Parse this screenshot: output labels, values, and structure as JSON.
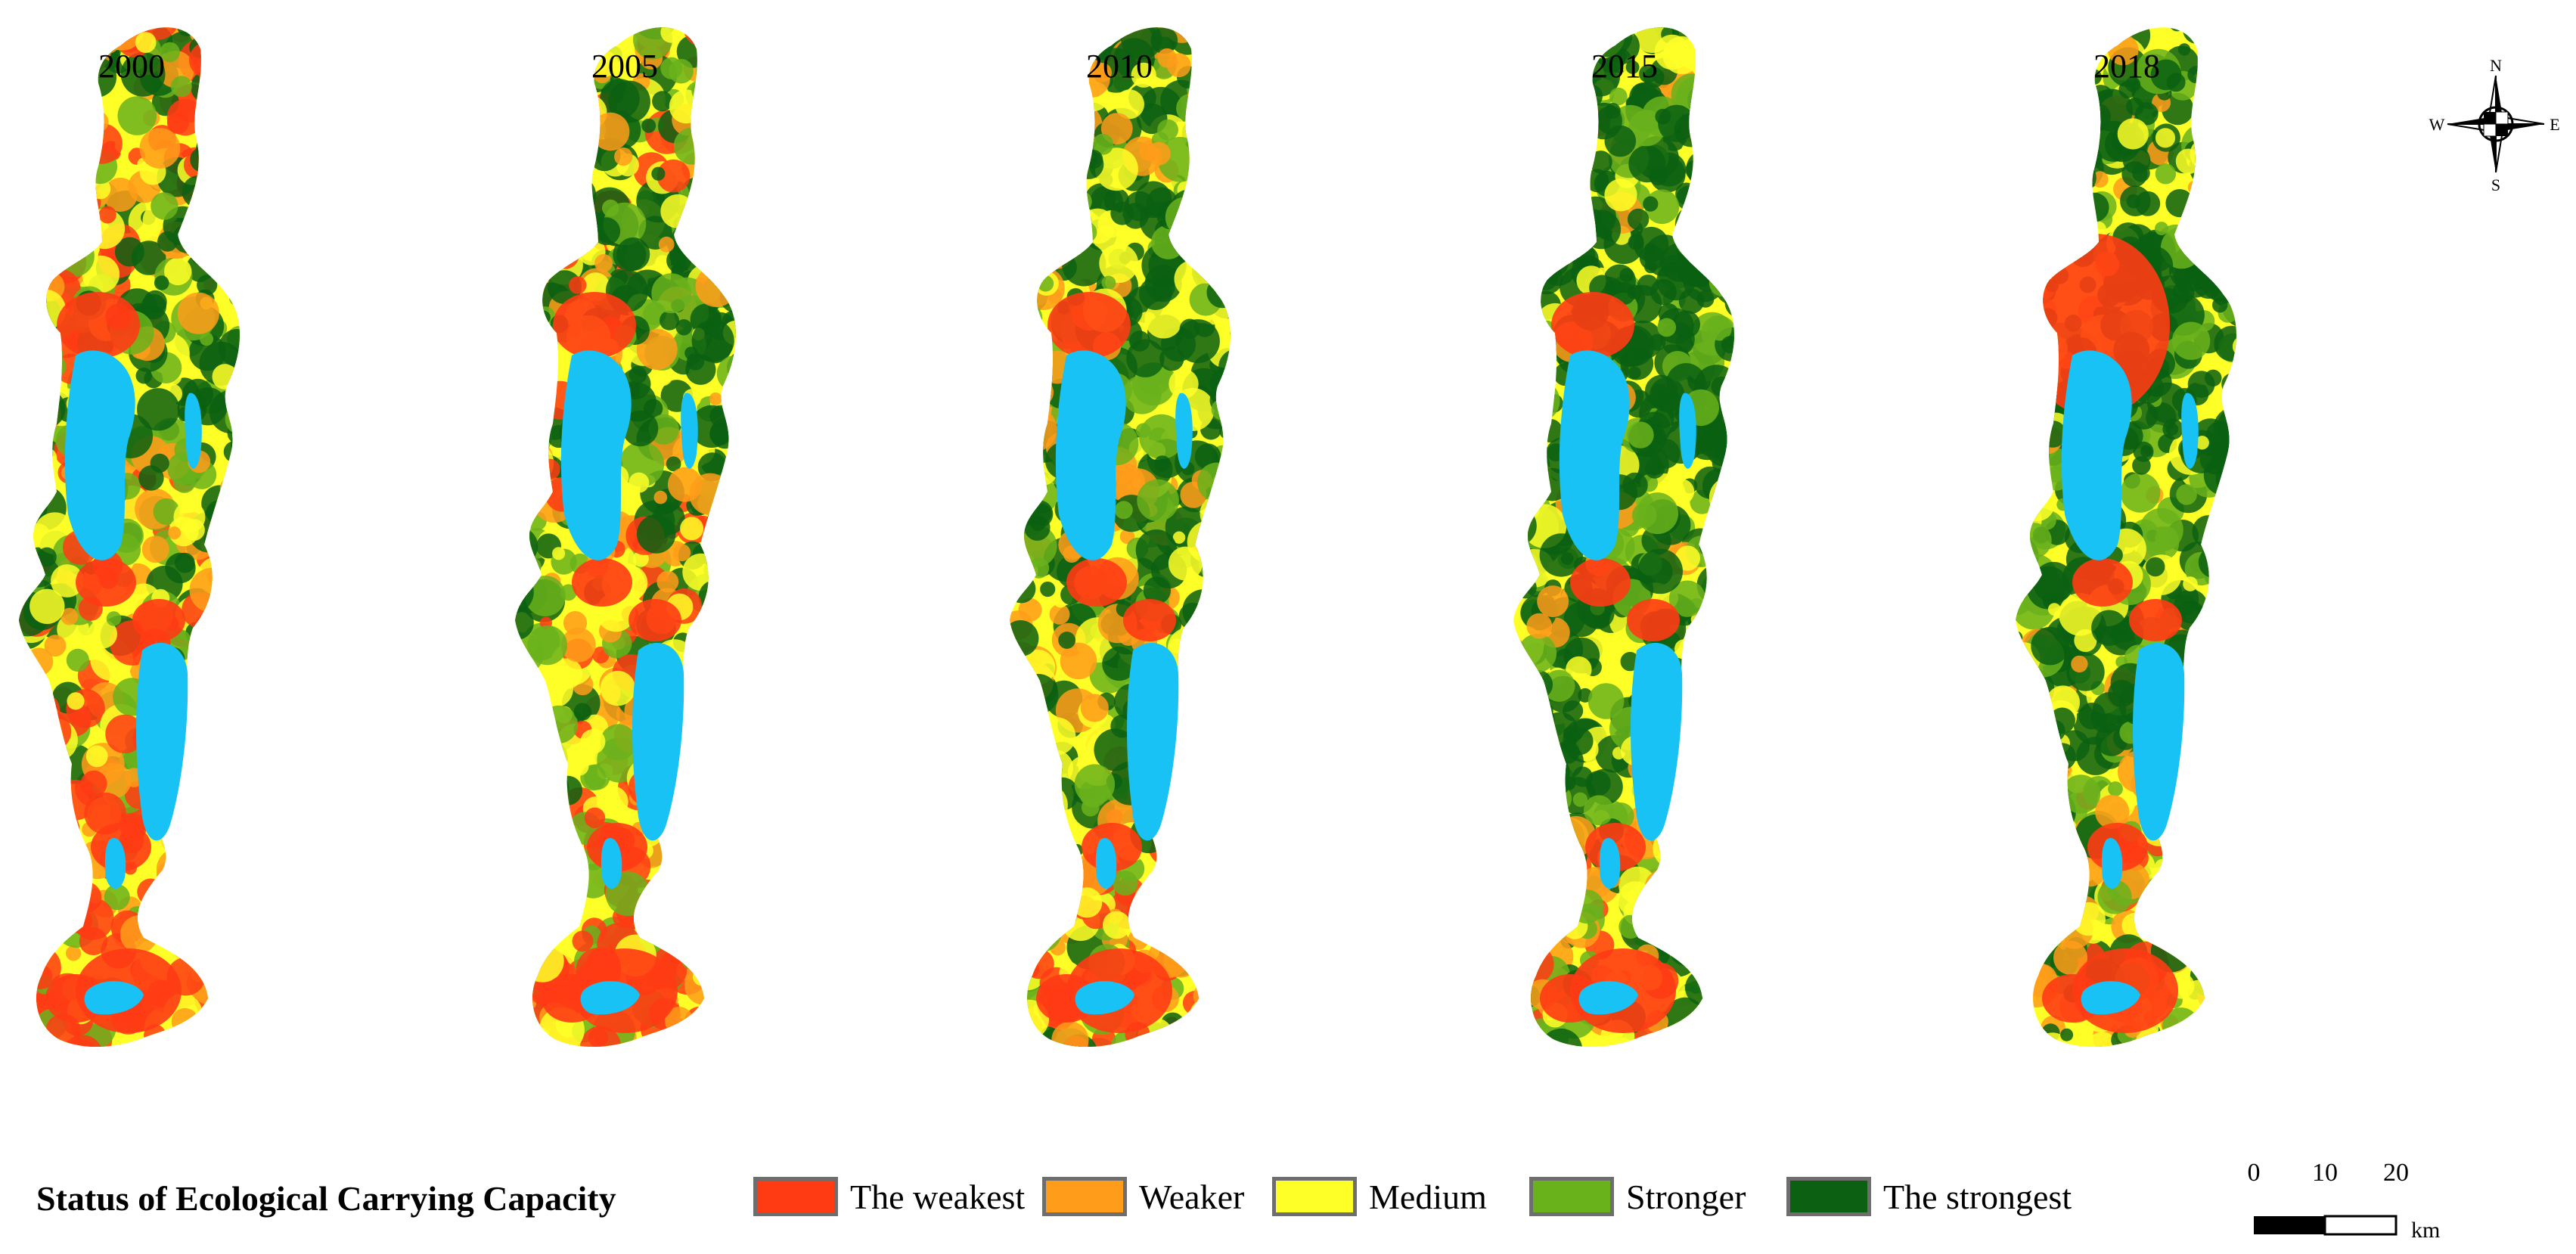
{
  "panels": [
    {
      "year": "2000"
    },
    {
      "year": "2005"
    },
    {
      "year": "2010"
    },
    {
      "year": "2015"
    },
    {
      "year": "2018"
    }
  ],
  "compass": {
    "n": "N",
    "s": "S",
    "e": "E",
    "w": "W"
  },
  "legend": {
    "title": "Status of Ecological Carrying Capacity",
    "items": [
      {
        "label": "The weakest",
        "color": "#ff3b14"
      },
      {
        "label": "Weaker",
        "color": "#ff9c1a"
      },
      {
        "label": "Medium",
        "color": "#ffff28"
      },
      {
        "label": "Stronger",
        "color": "#6ab21c"
      },
      {
        "label": "The strongest",
        "color": "#0b6012"
      }
    ]
  },
  "water_color": "#19c2f4",
  "scale": {
    "ticks": [
      "0",
      "10",
      "20"
    ],
    "unit": "km"
  }
}
